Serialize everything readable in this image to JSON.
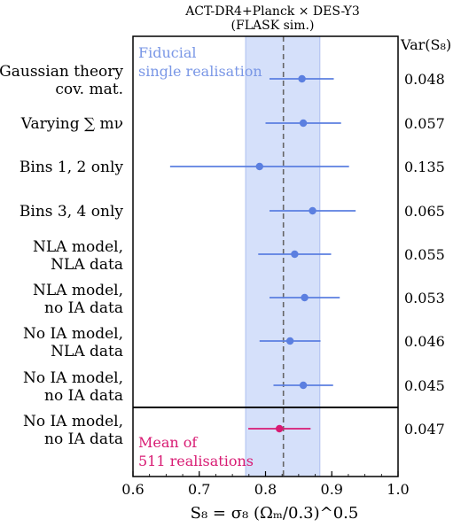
{
  "chart_data": {
    "type": "scatter",
    "title_line1": "ACT-DR4+Planck × DES-Y3",
    "title_line2": "(FLASK sim.)",
    "xlabel": "S₈ = σ₈ (Ωₘ/0.3)^0.5",
    "xlim": [
      0.6,
      1.0
    ],
    "xticks": [
      0.6,
      0.7,
      0.8,
      0.9,
      1.0
    ],
    "xtick_labels": [
      "0.6",
      "0.7",
      "0.8",
      "0.9",
      "1.0"
    ],
    "var_header": "Var(S₈)",
    "fiducial_value": 0.827,
    "fiducial_band": [
      0.77,
      0.882
    ],
    "fiducial_label_line1": "Fiducial",
    "fiducial_label_line2": "single realisation",
    "mean_label_line1": "Mean of",
    "mean_label_line2": "511 realisations",
    "colors": {
      "blue": "#5b7fe0",
      "band": "#d5e0fa",
      "pink": "#d81b73",
      "dashed": "#666666"
    },
    "rows": [
      {
        "label_line1": "Gaussian theory",
        "label_line2": "cov. mat.",
        "value": 0.855,
        "err_low": 0.806,
        "err_high": 0.903,
        "var": "0.048",
        "group": "single"
      },
      {
        "label_line1": "Varying ∑ mν",
        "label_line2": "",
        "value": 0.857,
        "err_low": 0.8,
        "err_high": 0.914,
        "var": "0.057",
        "group": "single"
      },
      {
        "label_line1": "Bins 1, 2 only",
        "label_line2": "",
        "value": 0.791,
        "err_low": 0.656,
        "err_high": 0.926,
        "var": "0.135",
        "group": "single"
      },
      {
        "label_line1": "Bins 3, 4 only",
        "label_line2": "",
        "value": 0.871,
        "err_low": 0.806,
        "err_high": 0.936,
        "var": "0.065",
        "group": "single"
      },
      {
        "label_line1": "NLA model,",
        "label_line2": "NLA data",
        "value": 0.844,
        "err_low": 0.789,
        "err_high": 0.899,
        "var": "0.055",
        "group": "single"
      },
      {
        "label_line1": "NLA model,",
        "label_line2": "no IA data",
        "value": 0.859,
        "err_low": 0.806,
        "err_high": 0.912,
        "var": "0.053",
        "group": "single"
      },
      {
        "label_line1": "No IA model,",
        "label_line2": "NLA data",
        "value": 0.837,
        "err_low": 0.791,
        "err_high": 0.883,
        "var": "0.046",
        "group": "single"
      },
      {
        "label_line1": "No IA model,",
        "label_line2": "no IA data",
        "value": 0.857,
        "err_low": 0.812,
        "err_high": 0.902,
        "var": "0.045",
        "group": "single"
      },
      {
        "label_line1": "No IA model,",
        "label_line2": "no IA data",
        "value": 0.821,
        "err_low": 0.774,
        "err_high": 0.868,
        "var": "0.047",
        "group": "mean"
      }
    ]
  }
}
